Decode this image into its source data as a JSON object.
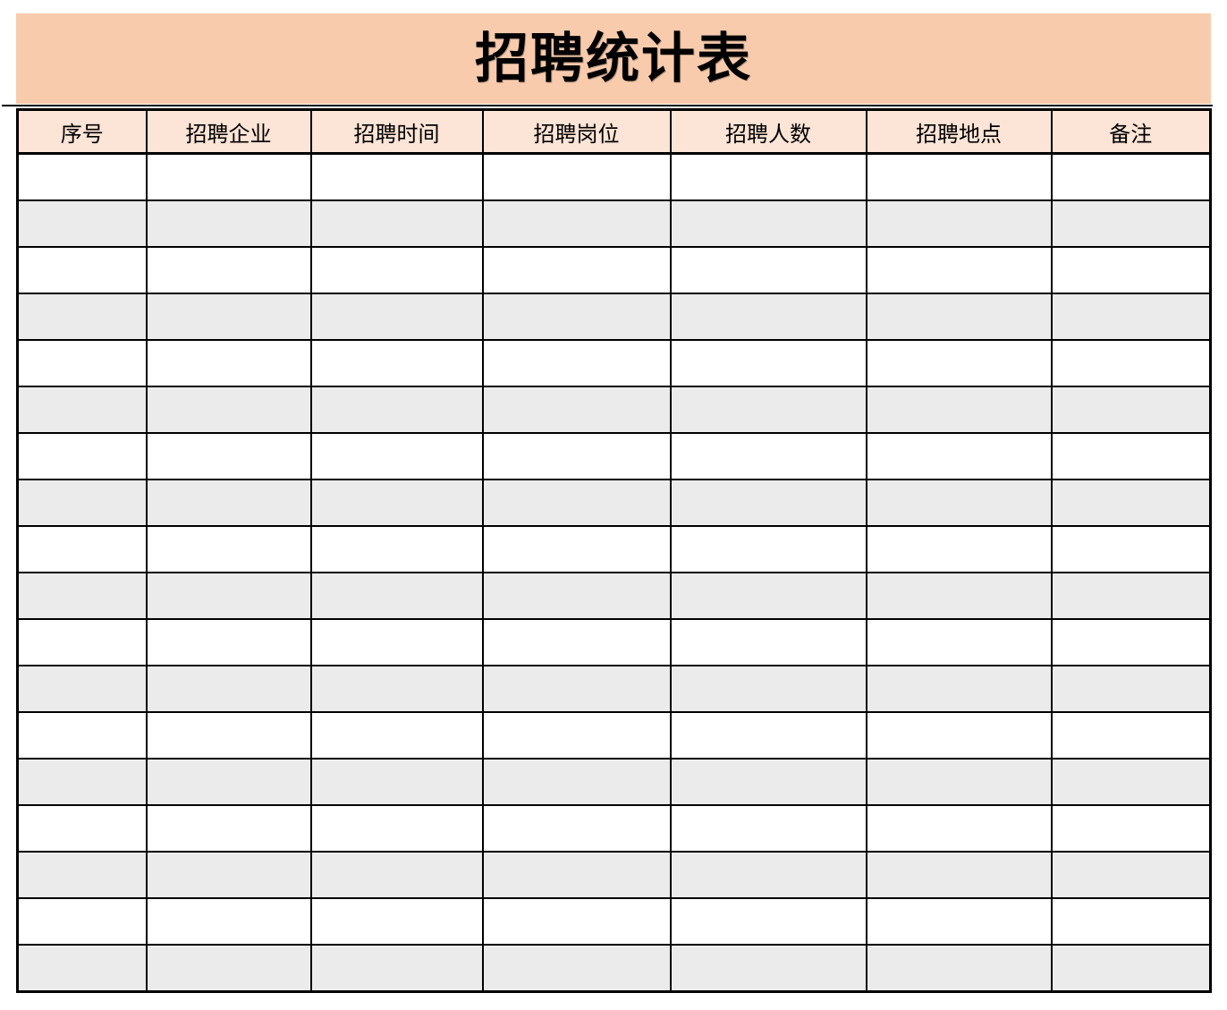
{
  "title": "招聘统计表",
  "table": {
    "columns": [
      {
        "label": "序号"
      },
      {
        "label": "招聘企业"
      },
      {
        "label": "招聘时间"
      },
      {
        "label": "招聘岗位"
      },
      {
        "label": "招聘人数"
      },
      {
        "label": "招聘地点"
      },
      {
        "label": "备注"
      }
    ],
    "rows": [
      [
        "",
        "",
        "",
        "",
        "",
        "",
        ""
      ],
      [
        "",
        "",
        "",
        "",
        "",
        "",
        ""
      ],
      [
        "",
        "",
        "",
        "",
        "",
        "",
        ""
      ],
      [
        "",
        "",
        "",
        "",
        "",
        "",
        ""
      ],
      [
        "",
        "",
        "",
        "",
        "",
        "",
        ""
      ],
      [
        "",
        "",
        "",
        "",
        "",
        "",
        ""
      ],
      [
        "",
        "",
        "",
        "",
        "",
        "",
        ""
      ],
      [
        "",
        "",
        "",
        "",
        "",
        "",
        ""
      ],
      [
        "",
        "",
        "",
        "",
        "",
        "",
        ""
      ],
      [
        "",
        "",
        "",
        "",
        "",
        "",
        ""
      ],
      [
        "",
        "",
        "",
        "",
        "",
        "",
        ""
      ],
      [
        "",
        "",
        "",
        "",
        "",
        "",
        ""
      ],
      [
        "",
        "",
        "",
        "",
        "",
        "",
        ""
      ],
      [
        "",
        "",
        "",
        "",
        "",
        "",
        ""
      ],
      [
        "",
        "",
        "",
        "",
        "",
        "",
        ""
      ],
      [
        "",
        "",
        "",
        "",
        "",
        "",
        ""
      ],
      [
        "",
        "",
        "",
        "",
        "",
        "",
        ""
      ],
      [
        "",
        "",
        "",
        "",
        "",
        "",
        ""
      ]
    ]
  },
  "colors": {
    "banner_bg": "#F8CBAD",
    "header_bg": "#FCE4D6",
    "row_bg": "#FFFFFF",
    "row_alt_bg": "#EBEBEB",
    "border": "#000000"
  }
}
